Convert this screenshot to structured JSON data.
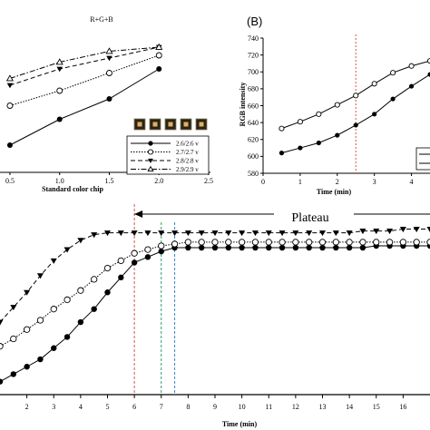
{
  "chart_data": [
    {
      "type": "line",
      "panel": "A",
      "title": "R+G+B",
      "xlabel": "Standard color chip",
      "ylabel": "",
      "xlim": [
        0.4,
        2.5
      ],
      "ylim": [
        0,
        10
      ],
      "x_ticks": [
        "0.5",
        "1.0",
        "1.5",
        "2.0",
        "2.5"
      ],
      "x": [
        0.5,
        1.0,
        1.5,
        2.0
      ],
      "series": [
        {
          "name": "2.6/2.6 v",
          "marker": "filled-circle",
          "line": "solid",
          "values": [
            2.0,
            3.9,
            5.4,
            7.6
          ]
        },
        {
          "name": "2.7/2.7 v",
          "marker": "open-circle",
          "line": "dotted",
          "values": [
            4.9,
            6.0,
            7.3,
            8.6
          ]
        },
        {
          "name": "2.8/2.8 v",
          "marker": "filled-triangle-down",
          "line": "dashed",
          "values": [
            6.4,
            7.6,
            8.4,
            9.2
          ]
        },
        {
          "name": "2.9/2.9 v",
          "marker": "open-triangle-up",
          "line": "dash-dot",
          "values": [
            6.9,
            8.1,
            8.9,
            9.2
          ]
        }
      ],
      "legend_placement": "bottom-right",
      "grid": false
    },
    {
      "type": "line",
      "panel": "B",
      "title": "(B)",
      "xlabel": "Time (min)",
      "ylabel": "RGB intensity",
      "xlim": [
        0,
        4.5
      ],
      "ylim": [
        580,
        740
      ],
      "x_ticks": [
        "0",
        "1",
        "2",
        "3",
        "4"
      ],
      "y_ticks": [
        "580",
        "600",
        "620",
        "640",
        "660",
        "680",
        "700",
        "720",
        "740"
      ],
      "x": [
        0.5,
        1.0,
        1.5,
        2.0,
        2.5,
        3.0,
        3.5,
        4.0,
        4.5
      ],
      "series": [
        {
          "marker": "open-circle",
          "line": "solid",
          "values": [
            633,
            641,
            650,
            661,
            672,
            686,
            699,
            707,
            713
          ]
        },
        {
          "marker": "filled-circle",
          "line": "solid",
          "values": [
            604,
            610,
            616,
            625,
            637,
            650,
            668,
            683,
            697
          ]
        }
      ],
      "vline_x": 2.5,
      "vline_color": "#d9534f",
      "legend_placement": "bottom-right",
      "grid": false
    },
    {
      "type": "line",
      "panel": "C",
      "title": "",
      "xlabel": "Time (min)",
      "ylabel": "",
      "xlim": [
        1,
        17
      ],
      "ylim": [
        0,
        10
      ],
      "x_ticks": [
        "2",
        "3",
        "4",
        "5",
        "6",
        "7",
        "8",
        "9",
        "10",
        "11",
        "12",
        "13",
        "14",
        "15",
        "16"
      ],
      "annotation": "Plateau",
      "vlines": [
        {
          "x": 6,
          "color": "#d9534f"
        },
        {
          "x": 7,
          "color": "#2a9d6e"
        },
        {
          "x": 7.5,
          "color": "#3a86c8"
        }
      ],
      "series": [
        {
          "marker": "filled-circle",
          "line": "solid",
          "x": [
            1.0,
            1.5,
            2.0,
            2.5,
            3.0,
            3.5,
            4.0,
            4.5,
            5.0,
            5.5,
            6.0,
            6.5,
            7.0,
            7.5,
            8.0,
            8.5,
            9.0,
            9.5,
            10.0,
            10.5,
            11.0,
            11.5,
            12.0,
            12.5,
            13.0,
            13.5,
            14.0,
            14.5,
            15.0,
            15.5,
            16.0,
            16.5,
            17.0
          ],
          "values": [
            0.7,
            1.1,
            1.5,
            1.9,
            2.5,
            3.1,
            3.9,
            4.6,
            5.5,
            6.3,
            7.1,
            7.4,
            7.7,
            7.9,
            7.9,
            7.9,
            7.9,
            7.9,
            7.9,
            7.9,
            7.9,
            7.9,
            7.9,
            7.9,
            7.9,
            7.9,
            7.9,
            7.9,
            8.0,
            8.0,
            8.0,
            8.0,
            8.0
          ]
        },
        {
          "marker": "open-circle",
          "line": "dotted",
          "x": [
            1.0,
            1.5,
            2.0,
            2.5,
            3.0,
            3.5,
            4.0,
            4.5,
            5.0,
            5.5,
            6.0,
            6.5,
            7.0,
            7.5,
            8.0,
            8.5,
            9.0,
            9.5,
            10.0,
            10.5,
            11.0,
            11.5,
            12.0,
            12.5,
            13.0,
            13.5,
            14.0,
            14.5,
            15.0,
            15.5,
            16.0,
            16.5,
            17.0
          ],
          "values": [
            2.6,
            3.0,
            3.5,
            4.0,
            4.6,
            5.1,
            5.6,
            6.2,
            6.8,
            7.2,
            7.6,
            7.8,
            8.0,
            8.1,
            8.2,
            8.2,
            8.2,
            8.2,
            8.2,
            8.2,
            8.2,
            8.2,
            8.2,
            8.2,
            8.2,
            8.2,
            8.2,
            8.2,
            8.2,
            8.2,
            8.2,
            8.2,
            8.2
          ]
        },
        {
          "marker": "filled-triangle-down",
          "line": "dashed",
          "x": [
            1.0,
            1.5,
            2.0,
            2.5,
            3.0,
            3.5,
            4.0,
            4.5,
            5.0,
            5.5,
            6.0,
            6.5,
            7.0,
            7.5,
            8.0,
            8.5,
            9.0,
            9.5,
            10.0,
            10.5,
            11.0,
            11.5,
            12.0,
            12.5,
            13.0,
            13.5,
            14.0,
            14.5,
            15.0,
            15.5,
            16.0,
            16.5,
            17.0
          ],
          "values": [
            3.9,
            4.7,
            5.5,
            6.4,
            7.2,
            7.8,
            8.3,
            8.6,
            8.7,
            8.7,
            8.7,
            8.7,
            8.7,
            8.7,
            8.7,
            8.7,
            8.7,
            8.7,
            8.7,
            8.7,
            8.7,
            8.7,
            8.7,
            8.7,
            8.7,
            8.7,
            8.7,
            8.8,
            8.8,
            8.8,
            8.9,
            8.9,
            8.9
          ]
        }
      ],
      "grid": false
    }
  ]
}
